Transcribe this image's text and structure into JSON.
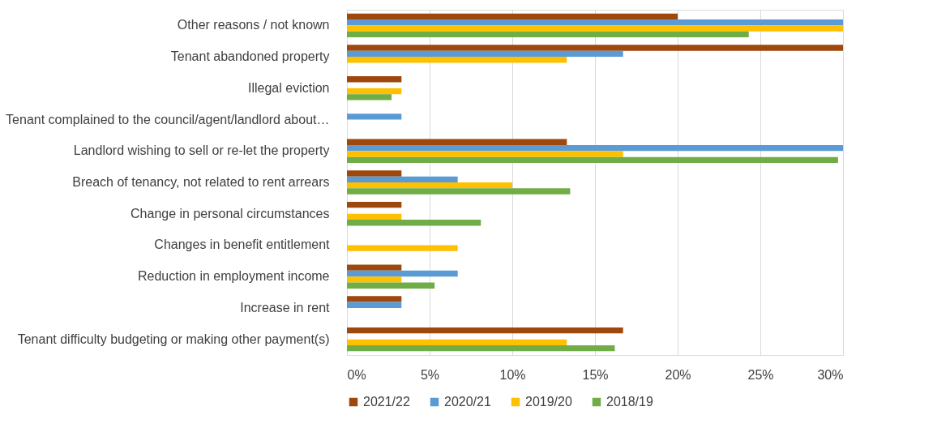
{
  "chart_data": {
    "type": "bar",
    "orientation": "horizontal",
    "categories": [
      "Other reasons / not known",
      "Tenant abandoned property",
      "Illegal eviction",
      "Tenant complained to the council/agent/landlord about…",
      "Landlord wishing to sell or re-let the property",
      "Breach of tenancy, not related to rent arrears",
      "Change in personal circumstances",
      "Changes  in benefit entitlement",
      "Reduction in employment income",
      "Increase in rent",
      "Tenant difficulty budgeting or making other payment(s)"
    ],
    "series": [
      {
        "name": "2021/22",
        "color": "#9e480e",
        "values": [
          20,
          30,
          3.3,
          null,
          13.3,
          3.3,
          3.3,
          null,
          3.3,
          3.3,
          16.7
        ]
      },
      {
        "name": "2020/21",
        "color": "#5b9bd5",
        "values": [
          30,
          16.7,
          null,
          3.3,
          30,
          6.7,
          null,
          null,
          6.7,
          3.3,
          null
        ]
      },
      {
        "name": "2019/20",
        "color": "#ffc000",
        "values": [
          30,
          13.3,
          3.3,
          null,
          16.7,
          10,
          3.3,
          6.7,
          3.3,
          null,
          13.3
        ]
      },
      {
        "name": "2018/19",
        "color": "#70ad47",
        "values": [
          24.3,
          null,
          2.7,
          null,
          29.7,
          13.5,
          8.1,
          null,
          5.3,
          null,
          16.2
        ]
      }
    ],
    "xlim": [
      0,
      30
    ],
    "xticks": [
      {
        "value": 0,
        "label": "0%"
      },
      {
        "value": 5,
        "label": "5%"
      },
      {
        "value": 10,
        "label": "10%"
      },
      {
        "value": 15,
        "label": "15%"
      },
      {
        "value": 20,
        "label": "20%"
      },
      {
        "value": 25,
        "label": "25%"
      },
      {
        "value": 30,
        "label": "30%"
      }
    ],
    "grid": "x",
    "legend": "bottom"
  }
}
